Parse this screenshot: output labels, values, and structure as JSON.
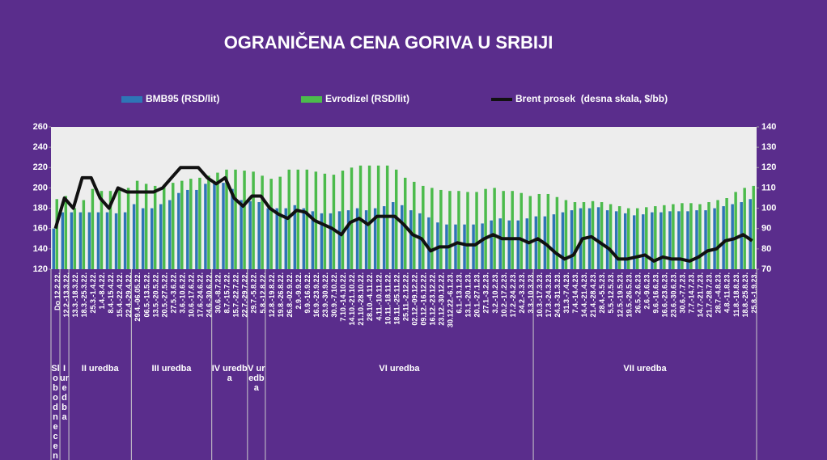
{
  "chart_data": {
    "type": "bar_line",
    "title": "OGRANIČENA CENA GORIVA U SRBIJI",
    "categories": [
      "Do 12.2.22.",
      "12.2.-13.3.22.",
      "13.3.-18.3.22.",
      "18.3.-25.3.22.",
      "25.3.-1.4.22.",
      "1.4.-8.4.22.",
      "8.4.-15.4.22.",
      "15.4.-22.4.22.",
      "22.4.-29.4.22.",
      "29.4.-06.05.22.",
      "06.5.-13.5.22.",
      "13.5.-20.5.22.",
      "20.5.-27.5.22.",
      "27.5.-3.6.22.",
      "3.6.-10.6.22.",
      "10.6.-17.6.22.",
      "17.6.-24.6.22.",
      "24.6.-30.6.22.",
      "30.6.-8.7.22.",
      "8.7.-15.7.22.",
      "15.7.-22.7.22.",
      "22.7.-29.7.22.",
      "29.7.-5.8.22.",
      "5.8.-12.8.22.",
      "12.8.-19.8.22.",
      "19.8.-26.8.22.",
      "26.8.-02.9.22.",
      "2.9.-9.9.22.",
      "9.9.-16.9.22.",
      "16.9.-23.9.22.",
      "23.9.-30.9.22.",
      "30.9.-7.10.22.",
      "7.10.-14.10.22.",
      "14.10.-21.10.22.",
      "21.10.-28.10.22.",
      "28.10.-4.11.22.",
      "4.11.-10.11.22.",
      "10.11.-18.11.22.",
      "18.11.-25.11.22.",
      "25.11.-2.12.22.",
      "02.12.-09.12.22.",
      "09.12.-16.12.22.",
      "16.12.-23.12.22.",
      "23.12.-30.12.22.",
      "30.12.22.-6.1.23.",
      "6.1.-13.1.23.",
      "13.1.-20.1.23.",
      "20.1.-27.1.23.",
      "27.1.-3.2.23.",
      "3.2.-10.2.23.",
      "10.2.-17.2.23.",
      "17.2.-24.2.23.",
      "24.2.-3.3.23.",
      "3.3.-10.3.23.",
      "10.3.-17.3.23.",
      "17.3.-24.3.23.",
      "24.3.-31.3.23.",
      "31.3.-7.4.23.",
      "7.4.-14.4.23.",
      "14.4.-21.4.23.",
      "21.4.-28.4.23.",
      "28.4.-5.5.23.",
      "5.5.-12.5.23.",
      "12.5.-19.5.23.",
      "19.5.-26.5.23.",
      "26.5.-2.6.23.",
      "2.6.-9.6.23.",
      "9.6.-16.6.23.",
      "16.6.-23.6.23.",
      "23.6.-30.6.23.",
      "30.6.-7.7.23.",
      "7.7.-14.7.23.",
      "14.7.-21.7.23.",
      "21.7.-28.7.23.",
      "28.7.-4.8.23.",
      "4.8.-11.8.23.",
      "11.8.-18.8.23.",
      "18.8.-25.8.23.",
      "25.8.-1.9.23."
    ],
    "series": [
      {
        "name": "BMB95 (RSD/lit)",
        "color": "#2e75b6",
        "kind": "bar",
        "values": [
          160,
          176,
          176,
          176,
          176,
          176,
          176,
          175,
          176,
          184,
          180,
          180,
          184,
          188,
          195,
          198,
          198,
          204,
          205,
          205,
          199,
          188,
          187,
          186,
          180,
          180,
          180,
          183,
          180,
          177,
          175,
          175,
          177,
          178,
          180,
          178,
          180,
          182,
          186,
          183,
          178,
          175,
          171,
          166,
          164,
          164,
          164,
          164,
          165,
          168,
          170,
          168,
          168,
          170,
          172,
          172,
          174,
          176,
          178,
          180,
          180,
          181,
          178,
          177,
          175,
          173,
          174,
          176,
          176,
          177,
          177,
          177,
          178,
          178,
          180,
          182,
          184,
          186,
          189
        ]
      },
      {
        "name": "Evrodizel (RSD/lit)",
        "color": "#4cbb4c",
        "kind": "bar",
        "values": [
          189,
          192,
          180,
          188,
          199,
          197,
          197,
          199,
          200,
          207,
          204,
          202,
          203,
          205,
          207,
          209,
          210,
          212,
          215,
          218,
          218,
          217,
          216,
          212,
          209,
          211,
          218,
          218,
          218,
          216,
          214,
          213,
          217,
          220,
          222,
          222,
          222,
          222,
          218,
          210,
          206,
          202,
          200,
          198,
          197,
          197,
          196,
          196,
          199,
          200,
          197,
          197,
          195,
          192,
          194,
          194,
          191,
          188,
          186,
          186,
          187,
          186,
          184,
          182,
          180,
          180,
          181,
          182,
          183,
          184,
          185,
          185,
          184,
          186,
          188,
          190,
          196,
          200,
          202
        ]
      },
      {
        "name": "Brent prosek  (desna skala, $/bb)",
        "color": "#111111",
        "kind": "line",
        "axis": "y2",
        "values": [
          90,
          105,
          100,
          115,
          115,
          105,
          100,
          110,
          108,
          108,
          108,
          108,
          110,
          115,
          120,
          120,
          120,
          115,
          112,
          115,
          105,
          101,
          106,
          106,
          100,
          97,
          95,
          99,
          98,
          94,
          92,
          90,
          87,
          93,
          95,
          92,
          96,
          96,
          96,
          92,
          87,
          85,
          79,
          81,
          81,
          83,
          82,
          82,
          85,
          87,
          85,
          85,
          85,
          83,
          85,
          82,
          78,
          75,
          77,
          85,
          86,
          83,
          80,
          75,
          75,
          76,
          77,
          74,
          76,
          75,
          75,
          74,
          76,
          79,
          80,
          84,
          85,
          87,
          84
        ]
      }
    ],
    "ylim": [
      120,
      260
    ],
    "yticks": [
      120,
      140,
      160,
      180,
      200,
      220,
      240,
      260
    ],
    "y2lim": [
      70,
      140
    ],
    "y2ticks": [
      70,
      80,
      90,
      100,
      110,
      120,
      130,
      140
    ],
    "grid": false,
    "periods": [
      "Slobodne cene",
      "I uredba",
      "II uredba",
      "III uredba",
      "IV uredba",
      "V uredba",
      "VI uredba",
      "VII uredba"
    ]
  }
}
